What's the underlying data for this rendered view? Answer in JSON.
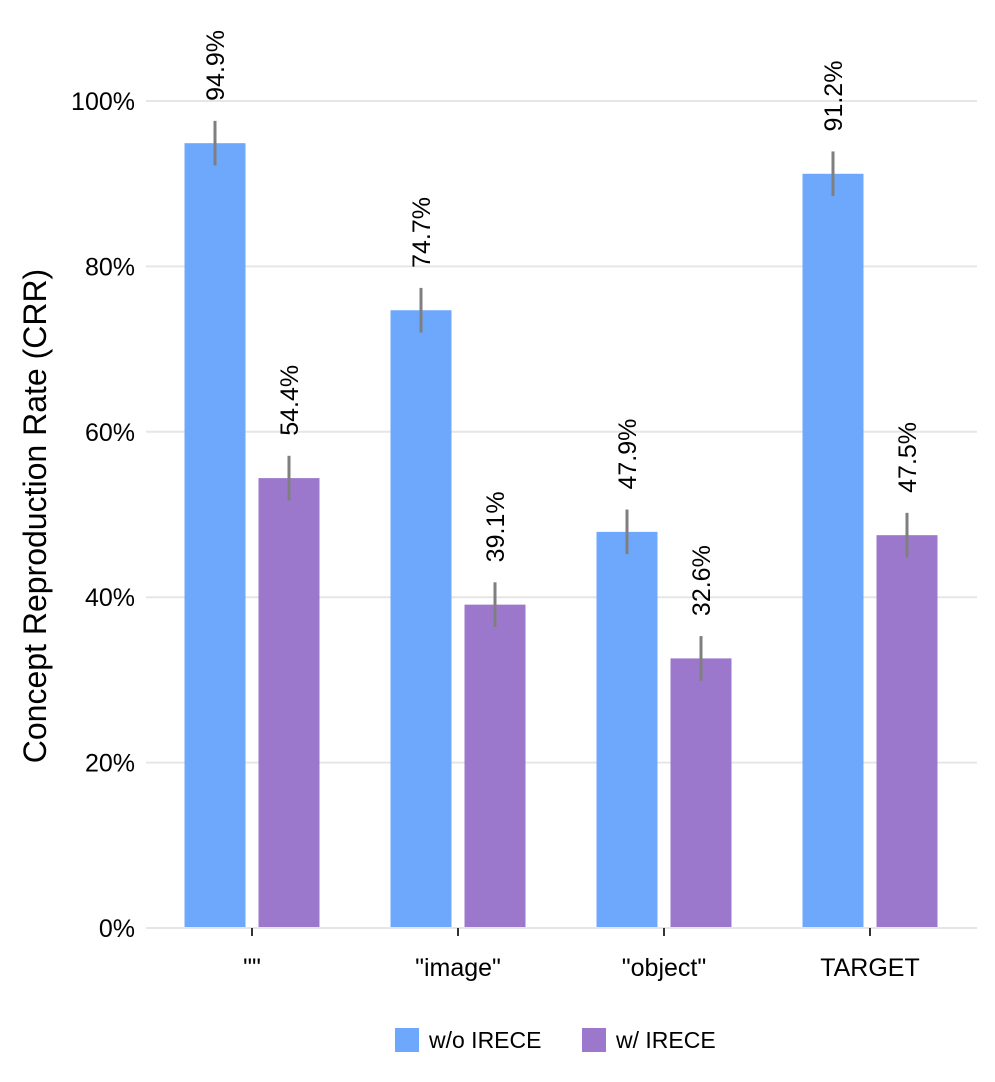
{
  "chart_data": {
    "type": "bar",
    "title": "",
    "xlabel": "",
    "ylabel": "Concept Reproduction Rate (CRR)",
    "ylim": [
      0,
      100
    ],
    "yticks": [
      0,
      20,
      40,
      60,
      80,
      100
    ],
    "ytick_labels": [
      "0%",
      "20%",
      "40%",
      "60%",
      "80%",
      "100%"
    ],
    "categories": [
      "\"\"",
      "\"image\"",
      "\"object\"",
      "TARGET"
    ],
    "series": [
      {
        "name": "w/o IRECE",
        "color": "#6ea8fc",
        "values": [
          94.9,
          74.7,
          47.9,
          91.2
        ],
        "labels": [
          "94.9%",
          "74.7%",
          "47.9%",
          "91.2%"
        ],
        "error": [
          2.7,
          2.7,
          2.7,
          2.7
        ]
      },
      {
        "name": "w/ IRECE",
        "color": "#9b78cb",
        "values": [
          54.4,
          39.1,
          32.6,
          47.5
        ],
        "labels": [
          "54.4%",
          "39.1%",
          "32.6%",
          "47.5%"
        ],
        "error": [
          2.7,
          2.7,
          2.7,
          2.7
        ]
      }
    ],
    "grid": true,
    "legend_position": "bottom"
  }
}
